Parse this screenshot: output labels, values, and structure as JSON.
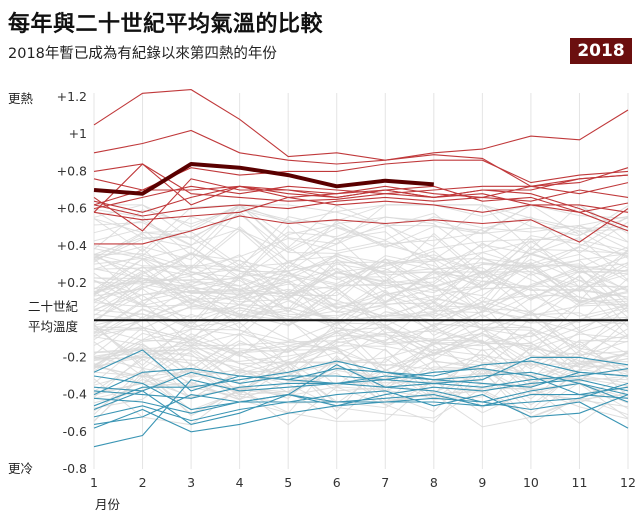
{
  "header": {
    "title": "每年與二十世紀平均氣溫的比較",
    "subtitle": "2018年暫已成為有紀錄以來第四熱的年份",
    "badge": "2018"
  },
  "labels": {
    "warmer": "更熱",
    "cooler": "更冷",
    "baseline_line1": "二十世紀",
    "baseline_line2": "平均溫度",
    "x_axis": "月份"
  },
  "colors": {
    "gray": "#d9d9d9",
    "red": "#c0393b",
    "blue": "#3a95b4",
    "highlight": "#5a0000",
    "baseline": "#111111"
  },
  "chart_data": {
    "type": "line",
    "xlabel": "月份",
    "ylabel": "",
    "xlim": [
      1,
      12
    ],
    "ylim": [
      -0.8,
      1.2
    ],
    "x_ticks": [
      "1",
      "2",
      "3",
      "4",
      "5",
      "6",
      "7",
      "8",
      "9",
      "10",
      "11",
      "12"
    ],
    "y_ticks": [
      {
        "value": 1.2,
        "label": "+1.2"
      },
      {
        "value": 1.0,
        "label": "+1"
      },
      {
        "value": 0.8,
        "label": "+0.8"
      },
      {
        "value": 0.6,
        "label": "+0.6"
      },
      {
        "value": 0.4,
        "label": "+0.4"
      },
      {
        "value": 0.2,
        "label": "+0.2"
      },
      {
        "value": -0.2,
        "label": "-0.2"
      },
      {
        "value": -0.4,
        "label": "-0.4"
      },
      {
        "value": -0.6,
        "label": "-0.6"
      },
      {
        "value": -0.8,
        "label": "-0.8"
      }
    ],
    "baseline": 0,
    "highlight": {
      "name": "2018",
      "values": [
        0.7,
        0.68,
        0.84,
        0.82,
        0.78,
        0.72,
        0.75,
        0.73
      ]
    },
    "red_series": [
      [
        1.05,
        1.22,
        1.24,
        1.08,
        0.88,
        0.9,
        0.86,
        0.89,
        0.87,
        0.72,
        0.76,
        0.78
      ],
      [
        0.9,
        0.95,
        1.02,
        0.9,
        0.86,
        0.84,
        0.86,
        0.9,
        0.92,
        0.99,
        0.97,
        1.13
      ],
      [
        0.62,
        0.7,
        0.82,
        0.78,
        0.8,
        0.8,
        0.84,
        0.86,
        0.86,
        0.74,
        0.78,
        0.8
      ],
      [
        0.8,
        0.84,
        0.62,
        0.72,
        0.68,
        0.66,
        0.7,
        0.66,
        0.68,
        0.62,
        0.58,
        0.48
      ],
      [
        0.58,
        0.84,
        0.68,
        0.66,
        0.64,
        0.65,
        0.68,
        0.7,
        0.72,
        0.72,
        0.68,
        0.74
      ],
      [
        0.66,
        0.48,
        0.76,
        0.7,
        0.7,
        0.66,
        0.7,
        0.72,
        0.64,
        0.66,
        0.58,
        0.63
      ],
      [
        0.64,
        0.58,
        0.66,
        0.72,
        0.7,
        0.68,
        0.7,
        0.66,
        0.7,
        0.7,
        0.76,
        0.78
      ],
      [
        0.62,
        0.56,
        0.6,
        0.62,
        0.6,
        0.64,
        0.66,
        0.64,
        0.66,
        0.64,
        0.7,
        0.66
      ],
      [
        0.58,
        0.54,
        0.56,
        0.58,
        0.66,
        0.62,
        0.64,
        0.62,
        0.58,
        0.62,
        0.62,
        0.58
      ],
      [
        0.41,
        0.41,
        0.48,
        0.56,
        0.52,
        0.54,
        0.52,
        0.54,
        0.52,
        0.54,
        0.42,
        0.6
      ],
      [
        0.76,
        0.7,
        0.7,
        0.72,
        0.66,
        0.68,
        0.72,
        0.68,
        0.66,
        0.72,
        0.74,
        0.82
      ],
      [
        0.6,
        0.66,
        0.72,
        0.68,
        0.72,
        0.7,
        0.68,
        0.66,
        0.7,
        0.68,
        0.6,
        0.5
      ]
    ],
    "blue_series": [
      [
        -0.38,
        -0.4,
        -0.42,
        -0.36,
        -0.34,
        -0.34,
        -0.36,
        -0.34,
        -0.36,
        -0.32,
        -0.3,
        -0.26
      ],
      [
        -0.48,
        -0.38,
        -0.28,
        -0.34,
        -0.3,
        -0.3,
        -0.32,
        -0.34,
        -0.32,
        -0.2,
        -0.2,
        -0.24
      ],
      [
        -0.28,
        -0.16,
        -0.38,
        -0.3,
        -0.32,
        -0.26,
        -0.28,
        -0.32,
        -0.3,
        -0.28,
        -0.34,
        -0.4
      ],
      [
        -0.36,
        -0.38,
        -0.56,
        -0.5,
        -0.4,
        -0.44,
        -0.42,
        -0.4,
        -0.46,
        -0.44,
        -0.42,
        -0.34
      ],
      [
        -0.56,
        -0.52,
        -0.4,
        -0.44,
        -0.44,
        -0.4,
        -0.38,
        -0.46,
        -0.4,
        -0.52,
        -0.5,
        -0.4
      ],
      [
        -0.68,
        -0.62,
        -0.32,
        -0.38,
        -0.36,
        -0.34,
        -0.3,
        -0.32,
        -0.34,
        -0.36,
        -0.28,
        -0.3
      ],
      [
        -0.42,
        -0.44,
        -0.5,
        -0.44,
        -0.4,
        -0.24,
        -0.36,
        -0.38,
        -0.44,
        -0.38,
        -0.34,
        -0.44
      ],
      [
        -0.52,
        -0.46,
        -0.54,
        -0.48,
        -0.44,
        -0.44,
        -0.44,
        -0.44,
        -0.46,
        -0.4,
        -0.4,
        -0.42
      ],
      [
        -0.58,
        -0.48,
        -0.6,
        -0.56,
        -0.5,
        -0.46,
        -0.44,
        -0.42,
        -0.44,
        -0.48,
        -0.44,
        -0.58
      ],
      [
        -0.3,
        -0.34,
        -0.48,
        -0.44,
        -0.4,
        -0.46,
        -0.4,
        -0.36,
        -0.38,
        -0.34,
        -0.32,
        -0.38
      ],
      [
        -0.46,
        -0.36,
        -0.36,
        -0.32,
        -0.28,
        -0.22,
        -0.28,
        -0.3,
        -0.24,
        -0.22,
        -0.28,
        -0.3
      ],
      [
        -0.4,
        -0.28,
        -0.26,
        -0.3,
        -0.32,
        -0.34,
        -0.32,
        -0.28,
        -0.26,
        -0.3,
        -0.4,
        -0.36
      ]
    ]
  }
}
